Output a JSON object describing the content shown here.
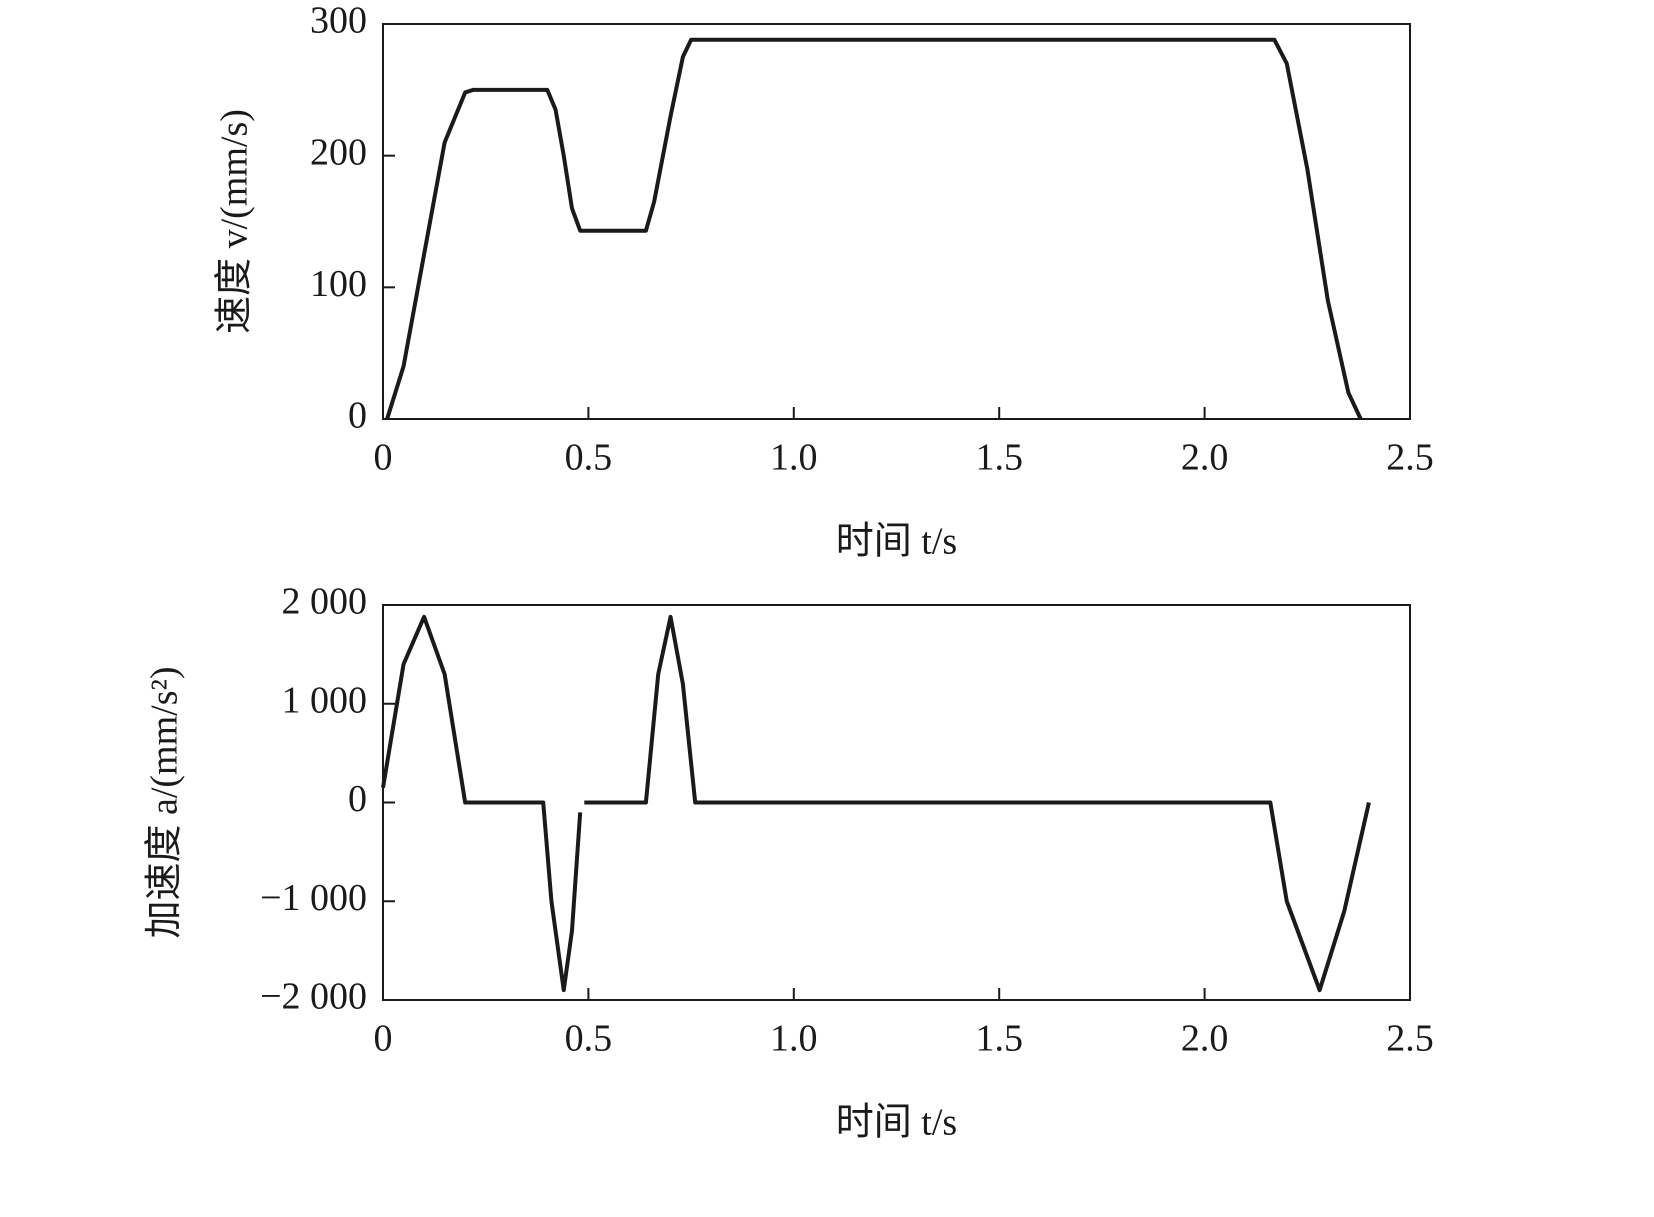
{
  "chart_data": [
    {
      "type": "line",
      "x_label": "时间 t/s",
      "y_label": "速度 v/(mm/s)",
      "x": [
        0.01,
        0.05,
        0.1,
        0.15,
        0.2,
        0.22,
        0.4,
        0.42,
        0.44,
        0.46,
        0.48,
        0.64,
        0.66,
        0.7,
        0.73,
        0.75,
        2.17,
        2.2,
        2.25,
        2.3,
        2.35,
        2.38
      ],
      "series": [
        {
          "color": "#1a1a1a",
          "values": [
            0,
            40,
            125,
            210,
            248,
            250,
            250,
            235,
            200,
            160,
            143,
            143,
            165,
            230,
            275,
            288,
            288,
            270,
            190,
            90,
            20,
            0
          ]
        }
      ],
      "xlim": [
        0,
        2.5
      ],
      "xticks": [
        0,
        0.5,
        {
          "value": 1,
          "label": "1.0"
        },
        1.5,
        {
          "value": 2,
          "label": "2.0"
        },
        2.5
      ],
      "ylim": [
        0,
        300
      ],
      "yticks": [
        0,
        100,
        200,
        300
      ]
    },
    {
      "type": "line",
      "x_label": "时间 t/s",
      "y_label": "加速度 a/(mm/s²)",
      "x": [
        0,
        0.05,
        0.1,
        0.15,
        0.2,
        0.39,
        0.41,
        0.44,
        0.46,
        0.48,
        0.485,
        0.49,
        0.64,
        0.67,
        0.7,
        0.73,
        0.76,
        2.16,
        2.2,
        2.28,
        2.34,
        2.4
      ],
      "series": [
        {
          "color": "#1a1a1a",
          "values": [
            150,
            1400,
            1880,
            1300,
            0,
            0,
            -1000,
            -1900,
            -1300,
            -100,
            null,
            0,
            0,
            1300,
            1880,
            1200,
            0,
            0,
            -1000,
            -1900,
            -1100,
            0
          ]
        }
      ],
      "xlim": [
        0,
        2.5
      ],
      "xticks": [
        0,
        0.5,
        {
          "value": 1,
          "label": "1.0"
        },
        1.5,
        {
          "value": 2,
          "label": "2.0"
        },
        2.5
      ],
      "ylim": [
        -2000,
        2000
      ],
      "yticks": [
        {
          "value": -2000,
          "label": "−2 000"
        },
        {
          "value": -1000,
          "label": "−1 000"
        },
        0,
        {
          "value": 1000,
          "label": "1 000"
        },
        {
          "value": 2000,
          "label": "2 000"
        }
      ]
    }
  ]
}
